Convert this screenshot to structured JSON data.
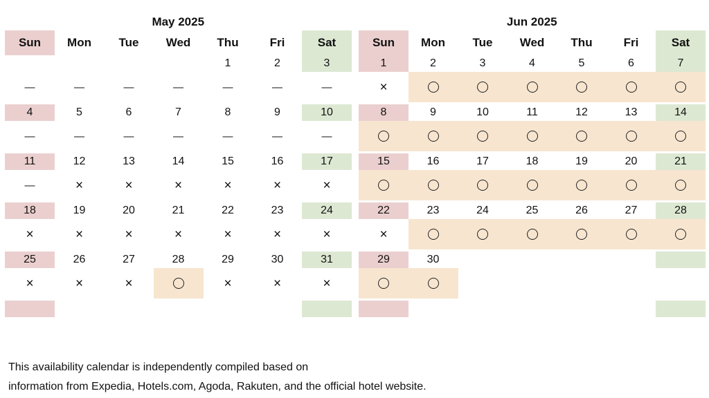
{
  "weekdays": [
    "Sun",
    "Mon",
    "Tue",
    "Wed",
    "Thu",
    "Fri",
    "Sat"
  ],
  "months": [
    {
      "title": "May 2025",
      "weeks": [
        {
          "dates": [
            "",
            "",
            "",
            "",
            "1",
            "2",
            "3"
          ],
          "marks": [
            "—",
            "—",
            "—",
            "—",
            "—",
            "—",
            "—"
          ]
        },
        {
          "dates": [
            "4",
            "5",
            "6",
            "7",
            "8",
            "9",
            "10"
          ],
          "marks": [
            "—",
            "—",
            "—",
            "—",
            "—",
            "—",
            "—"
          ]
        },
        {
          "dates": [
            "11",
            "12",
            "13",
            "14",
            "15",
            "16",
            "17"
          ],
          "marks": [
            "—",
            "×",
            "×",
            "×",
            "×",
            "×",
            "×"
          ]
        },
        {
          "dates": [
            "18",
            "19",
            "20",
            "21",
            "22",
            "23",
            "24"
          ],
          "marks": [
            "×",
            "×",
            "×",
            "×",
            "×",
            "×",
            "×"
          ]
        },
        {
          "dates": [
            "25",
            "26",
            "27",
            "28",
            "29",
            "30",
            "31"
          ],
          "marks": [
            "×",
            "×",
            "×",
            "○",
            "×",
            "×",
            "×"
          ]
        },
        {
          "dates": [
            "",
            "",
            "",
            "",
            "",
            "",
            ""
          ],
          "marks": [
            "",
            "",
            "",
            "",
            "",
            "",
            ""
          ]
        }
      ]
    },
    {
      "title": "Jun 2025",
      "weeks": [
        {
          "dates": [
            "1",
            "2",
            "3",
            "4",
            "5",
            "6",
            "7"
          ],
          "marks": [
            "×",
            "○",
            "○",
            "○",
            "○",
            "○",
            "○"
          ]
        },
        {
          "dates": [
            "8",
            "9",
            "10",
            "11",
            "12",
            "13",
            "14"
          ],
          "marks": [
            "○",
            "○",
            "○",
            "○",
            "○",
            "○",
            "○"
          ]
        },
        {
          "dates": [
            "15",
            "16",
            "17",
            "18",
            "19",
            "20",
            "21"
          ],
          "marks": [
            "○",
            "○",
            "○",
            "○",
            "○",
            "○",
            "○"
          ]
        },
        {
          "dates": [
            "22",
            "23",
            "24",
            "25",
            "26",
            "27",
            "28"
          ],
          "marks": [
            "×",
            "○",
            "○",
            "○",
            "○",
            "○",
            "○"
          ]
        },
        {
          "dates": [
            "29",
            "30",
            "",
            "",
            "",
            "",
            ""
          ],
          "marks": [
            "○",
            "○",
            "",
            "",
            "",
            "",
            ""
          ]
        },
        {
          "dates": [
            "",
            "",
            "",
            "",
            "",
            "",
            ""
          ],
          "marks": [
            "",
            "",
            "",
            "",
            "",
            "",
            ""
          ]
        }
      ]
    }
  ],
  "footer": {
    "line1": "This availability calendar is independently compiled based on",
    "line2": "information from Expedia, Hotels.com, Agoda, Rakuten, and the official hotel website."
  },
  "colors": {
    "sunday": "#ebcfcf",
    "saturday": "#dde8d3",
    "available": "#f7e5cf"
  },
  "legend_symbols": {
    "available": "○",
    "unavailable": "×",
    "not_applicable": "—"
  }
}
